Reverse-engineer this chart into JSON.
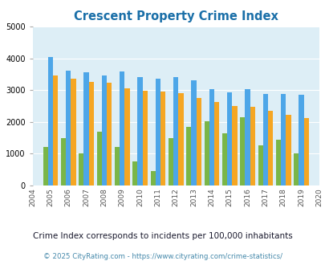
{
  "title": "Crescent Property Crime Index",
  "years": [
    2004,
    2005,
    2006,
    2007,
    2008,
    2009,
    2010,
    2011,
    2012,
    2013,
    2014,
    2015,
    2016,
    2017,
    2018,
    2019,
    2020
  ],
  "crescent": [
    null,
    1200,
    1500,
    1000,
    1700,
    1200,
    750,
    450,
    1500,
    1850,
    2020,
    1650,
    2150,
    1270,
    1430,
    1000,
    null
  ],
  "oklahoma": [
    null,
    4050,
    3600,
    3550,
    3450,
    3580,
    3420,
    3370,
    3420,
    3300,
    3020,
    2930,
    3030,
    2890,
    2890,
    2850,
    null
  ],
  "national": [
    null,
    3470,
    3360,
    3260,
    3230,
    3060,
    2970,
    2960,
    2900,
    2760,
    2620,
    2510,
    2470,
    2360,
    2210,
    2130,
    null
  ],
  "crescent_color": "#7ab648",
  "oklahoma_color": "#4da6e8",
  "national_color": "#f5a623",
  "bg_color": "#ddeef6",
  "ylim": [
    0,
    5000
  ],
  "yticks": [
    0,
    1000,
    2000,
    3000,
    4000,
    5000
  ],
  "subtitle": "Crime Index corresponds to incidents per 100,000 inhabitants",
  "footer": "© 2025 CityRating.com - https://www.cityrating.com/crime-statistics/",
  "subtitle_color": "#1a1a2e",
  "footer_color": "#4488aa",
  "title_color": "#1a6fa8",
  "legend_text_color": "#333333"
}
